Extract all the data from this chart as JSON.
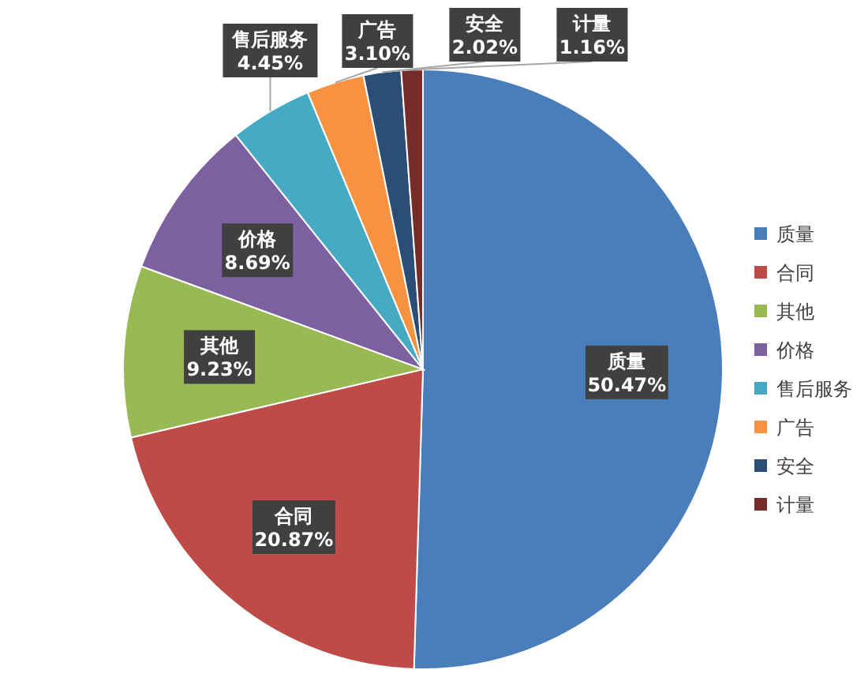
{
  "chart_data": {
    "type": "pie",
    "categories": [
      "质量",
      "合同",
      "其他",
      "价格",
      "售后服务",
      "广告",
      "安全",
      "计量"
    ],
    "values": [
      50.47,
      20.87,
      9.23,
      8.69,
      4.45,
      3.1,
      2.02,
      1.16
    ],
    "colors": [
      "#4a7ebb",
      "#be4b48",
      "#98b954",
      "#7d60a0",
      "#46aac5",
      "#f69240",
      "#2c4d75",
      "#772c2a"
    ],
    "value_labels": [
      "50.47%",
      "20.87%",
      "9.23%",
      "8.69%",
      "4.45%",
      "3.10%",
      "2.02%",
      "1.16%"
    ],
    "legend": "right"
  }
}
